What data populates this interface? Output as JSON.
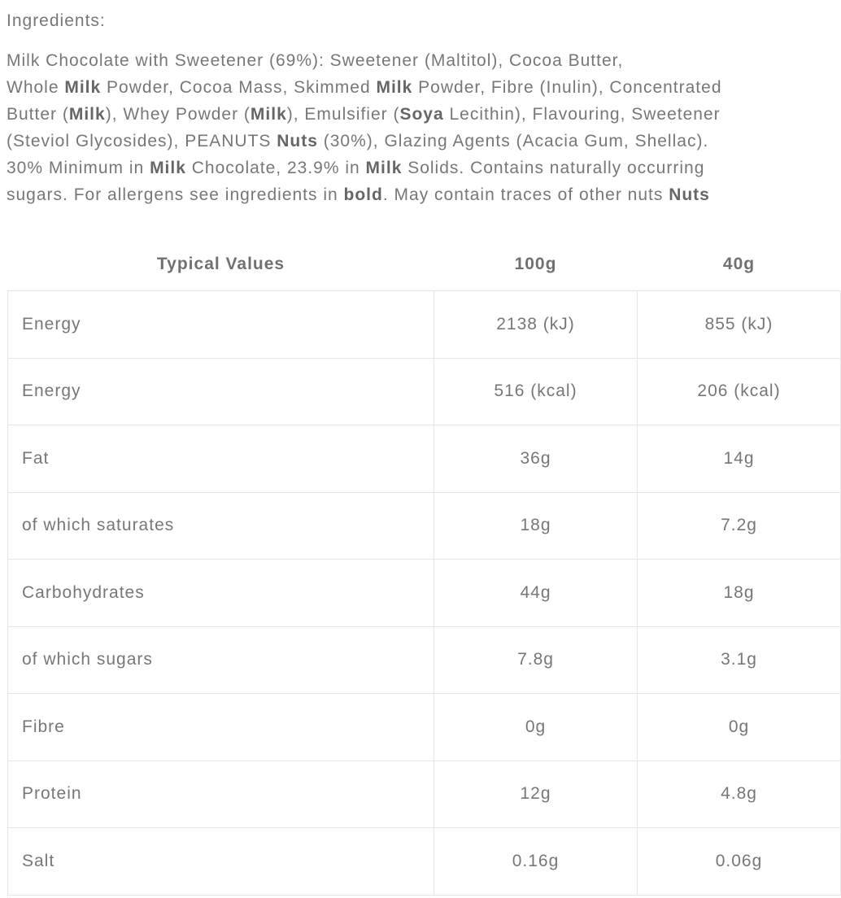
{
  "heading": "Ingredients:",
  "ingredients_lines": [
    [
      {
        "t": "Milk Chocolate with Sweetener (69%): Sweetener (Maltitol), Cocoa Butter,",
        "b": false
      }
    ],
    [
      {
        "t": "Whole ",
        "b": false
      },
      {
        "t": "Milk",
        "b": true
      },
      {
        "t": " Powder, Cocoa Mass, Skimmed ",
        "b": false
      },
      {
        "t": "Milk",
        "b": true
      },
      {
        "t": " Powder, Fibre (Inulin), Concentrated",
        "b": false
      }
    ],
    [
      {
        "t": "Butter (",
        "b": false
      },
      {
        "t": "Milk",
        "b": true
      },
      {
        "t": "), Whey Powder (",
        "b": false
      },
      {
        "t": "Milk",
        "b": true
      },
      {
        "t": "), Emulsifier (",
        "b": false
      },
      {
        "t": "Soya",
        "b": true
      },
      {
        "t": " Lecithin), Flavouring, Sweetener",
        "b": false
      }
    ],
    [
      {
        "t": "(Steviol Glycosides), PEANUTS ",
        "b": false
      },
      {
        "t": "Nuts",
        "b": true
      },
      {
        "t": " (30%), Glazing Agents (Acacia Gum, Shellac).",
        "b": false
      }
    ],
    [
      {
        "t": "30% Minimum in ",
        "b": false
      },
      {
        "t": "Milk",
        "b": true
      },
      {
        "t": " Chocolate, 23.9% in ",
        "b": false
      },
      {
        "t": "Milk",
        "b": true
      },
      {
        "t": " Solids. Contains naturally occurring",
        "b": false
      }
    ],
    [
      {
        "t": "sugars. For allergens see ingredients in ",
        "b": false
      },
      {
        "t": "bold",
        "b": true
      },
      {
        "t": ". May contain traces of other nuts ",
        "b": false
      },
      {
        "t": "Nuts",
        "b": true
      }
    ]
  ],
  "table": {
    "headers": [
      "Typical Values",
      "100g",
      "40g"
    ],
    "rows": [
      [
        "Energy",
        "2138 (kJ)",
        "855 (kJ)"
      ],
      [
        "Energy",
        "516 (kcal)",
        "206 (kcal)"
      ],
      [
        "Fat",
        "36g",
        "14g"
      ],
      [
        "of which saturates",
        "18g",
        "7.2g"
      ],
      [
        "Carbohydrates",
        "44g",
        "18g"
      ],
      [
        "of which sugars",
        "7.8g",
        "3.1g"
      ],
      [
        "Fibre",
        "0g",
        "0g"
      ],
      [
        "Protein",
        "12g",
        "4.8g"
      ],
      [
        "Salt",
        "0.16g",
        "0.06g"
      ]
    ]
  }
}
